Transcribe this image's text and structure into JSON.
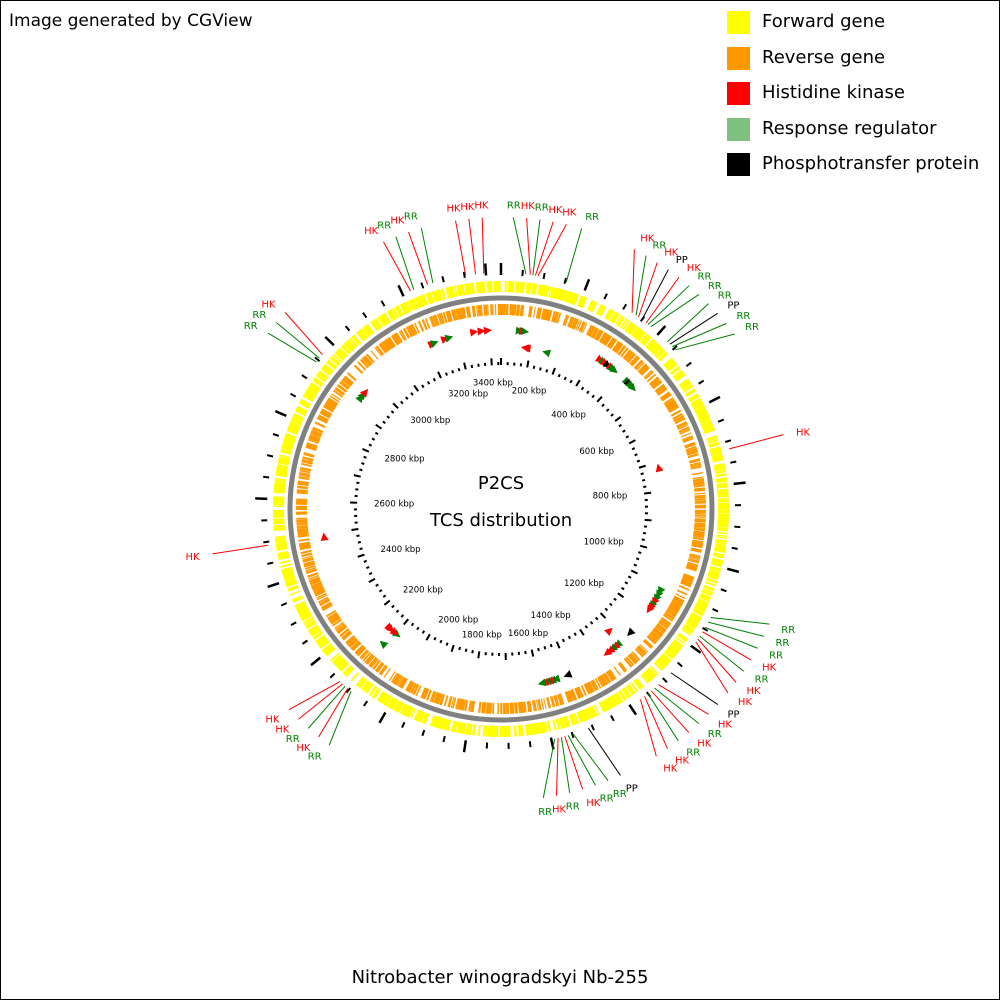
{
  "header": {
    "credit": "Image generated by CGView"
  },
  "legend": [
    {
      "label": "Forward gene",
      "color": "#ffff00"
    },
    {
      "label": "Reverse gene",
      "color": "#ff9900"
    },
    {
      "label": "Histidine kinase",
      "color": "#ff0000"
    },
    {
      "label": "Response regulator",
      "color": "#80c080"
    },
    {
      "label": "Phosphotransfer protein",
      "color": "#000000"
    }
  ],
  "center": {
    "title": "P2CS",
    "subtitle": "TCS distribution"
  },
  "genome": {
    "name": "Nitrobacter winogradskyi Nb-255",
    "length_kbp": 3400
  },
  "ruler_ticks": [
    {
      "kbp": 200,
      "label": "200 kbp"
    },
    {
      "kbp": 400,
      "label": "400 kbp"
    },
    {
      "kbp": 600,
      "label": "600 kbp"
    },
    {
      "kbp": 800,
      "label": "800 kbp"
    },
    {
      "kbp": 1000,
      "label": "1000 kbp"
    },
    {
      "kbp": 1200,
      "label": "1200 kbp"
    },
    {
      "kbp": 1400,
      "label": "1400 kbp"
    },
    {
      "kbp": 1600,
      "label": "1600 kbp"
    },
    {
      "kbp": 1800,
      "label": "1800 kbp"
    },
    {
      "kbp": 2000,
      "label": "2000 kbp"
    },
    {
      "kbp": 2200,
      "label": "2200 kbp"
    },
    {
      "kbp": 2400,
      "label": "2400 kbp"
    },
    {
      "kbp": 2600,
      "label": "2600 kbp"
    },
    {
      "kbp": 2800,
      "label": "2800 kbp"
    },
    {
      "kbp": 3000,
      "label": "3000 kbp"
    },
    {
      "kbp": 3200,
      "label": "3200 kbp"
    },
    {
      "kbp": 3400,
      "label": "3400 kbp"
    }
  ],
  "colors": {
    "HK": "#ff0000",
    "RR": "#008000",
    "PP": "#000000",
    "forward": "#ffff00",
    "reverse": "#ff9900",
    "backbone": "#808080"
  },
  "tcs_features": [
    {
      "type": "HK",
      "kbp": 3353,
      "strand": "forward"
    },
    {
      "type": "HK",
      "kbp": 3376,
      "strand": "forward"
    },
    {
      "type": "HK",
      "kbp": 3395,
      "strand": "forward"
    },
    {
      "type": "RR",
      "kbp": 58,
      "strand": "forward"
    },
    {
      "type": "HK",
      "kbp": 68,
      "strand": "forward"
    },
    {
      "type": "RR",
      "kbp": 74,
      "strand": "forward"
    },
    {
      "type": "HK",
      "kbp": 80,
      "strand": "reverse"
    },
    {
      "type": "HK",
      "kbp": 86,
      "strand": "reverse"
    },
    {
      "type": "RR",
      "kbp": 153,
      "strand": "reverse"
    },
    {
      "type": "HK",
      "kbp": 322,
      "strand": "forward"
    },
    {
      "type": "RR",
      "kbp": 333,
      "strand": "forward"
    },
    {
      "type": "HK",
      "kbp": 340,
      "strand": "forward"
    },
    {
      "type": "PP",
      "kbp": 350,
      "strand": "forward"
    },
    {
      "type": "HK",
      "kbp": 362,
      "strand": "forward"
    },
    {
      "type": "RR",
      "kbp": 368,
      "strand": "forward"
    },
    {
      "type": "RR",
      "kbp": 376,
      "strand": "forward"
    },
    {
      "type": "RR",
      "kbp": 428,
      "strand": "forward"
    },
    {
      "type": "PP",
      "kbp": 436,
      "strand": "forward"
    },
    {
      "type": "RR",
      "kbp": 444,
      "strand": "forward"
    },
    {
      "type": "RR",
      "kbp": 454,
      "strand": "forward"
    },
    {
      "type": "HK",
      "kbp": 718,
      "strand": "reverse"
    },
    {
      "type": "RR",
      "kbp": 1120,
      "strand": "forward"
    },
    {
      "type": "RR",
      "kbp": 1132,
      "strand": "forward"
    },
    {
      "type": "RR",
      "kbp": 1146,
      "strand": "forward"
    },
    {
      "type": "HK",
      "kbp": 1158,
      "strand": "forward"
    },
    {
      "type": "RR",
      "kbp": 1170,
      "strand": "forward"
    },
    {
      "type": "HK",
      "kbp": 1178,
      "strand": "forward"
    },
    {
      "type": "HK",
      "kbp": 1186,
      "strand": "forward"
    },
    {
      "type": "PP",
      "kbp": 1278,
      "strand": "forward"
    },
    {
      "type": "HK",
      "kbp": 1318,
      "strand": "reverse"
    },
    {
      "type": "RR",
      "kbp": 1330,
      "strand": "forward"
    },
    {
      "type": "HK",
      "kbp": 1340,
      "strand": "forward"
    },
    {
      "type": "RR",
      "kbp": 1350,
      "strand": "forward"
    },
    {
      "type": "HK",
      "kbp": 1360,
      "strand": "forward"
    },
    {
      "type": "HK",
      "kbp": 1372,
      "strand": "forward"
    },
    {
      "type": "PP",
      "kbp": 1510,
      "strand": "forward"
    },
    {
      "type": "RR",
      "kbp": 1548,
      "strand": "forward"
    },
    {
      "type": "RR",
      "kbp": 1560,
      "strand": "forward"
    },
    {
      "type": "HK",
      "kbp": 1568,
      "strand": "forward"
    },
    {
      "type": "RR",
      "kbp": 1576,
      "strand": "forward"
    },
    {
      "type": "HK",
      "kbp": 1584,
      "strand": "forward"
    },
    {
      "type": "RR",
      "kbp": 1592,
      "strand": "forward"
    },
    {
      "type": "RR",
      "kbp": 2094,
      "strand": "reverse"
    },
    {
      "type": "HK",
      "kbp": 2104,
      "strand": "reverse"
    },
    {
      "type": "RR",
      "kbp": 2112,
      "strand": "forward"
    },
    {
      "type": "HK",
      "kbp": 2120,
      "strand": "reverse"
    },
    {
      "type": "HK",
      "kbp": 2128,
      "strand": "reverse"
    },
    {
      "type": "HK",
      "kbp": 2492,
      "strand": "forward"
    },
    {
      "type": "RR",
      "kbp": 2944,
      "strand": "forward"
    },
    {
      "type": "RR",
      "kbp": 2955,
      "strand": "forward"
    },
    {
      "type": "HK",
      "kbp": 2966,
      "strand": "forward"
    },
    {
      "type": "HK",
      "kbp": 3220,
      "strand": "forward"
    },
    {
      "type": "RR",
      "kbp": 3228,
      "strand": "forward"
    },
    {
      "type": "HK",
      "kbp": 3262,
      "strand": "forward"
    },
    {
      "type": "RR",
      "kbp": 3275,
      "strand": "forward"
    }
  ]
}
